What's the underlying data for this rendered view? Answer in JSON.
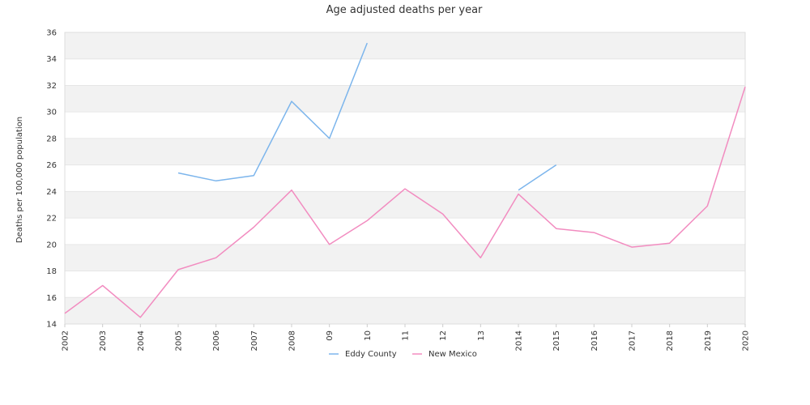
{
  "chart_data": {
    "type": "line",
    "title": "Age adjusted deaths per year",
    "xlabel": "",
    "ylabel": "Deaths per 100,000 population",
    "ylim": [
      14,
      36
    ],
    "yticks": [
      14,
      16,
      18,
      20,
      22,
      24,
      26,
      28,
      30,
      32,
      34,
      36
    ],
    "categories": [
      "2002",
      "2003",
      "2004",
      "2005",
      "2006",
      "2007",
      "2008",
      "09",
      "10",
      "11",
      "12",
      "13",
      "2014",
      "2015",
      "2016",
      "2017",
      "2018",
      "2019",
      "2020"
    ],
    "grid": "alternating horizontal bands",
    "legend_position": "bottom",
    "series": [
      {
        "name": "Eddy County",
        "color": "#7cb5ec",
        "values": [
          null,
          null,
          null,
          25.4,
          24.8,
          25.2,
          30.8,
          28.0,
          35.2,
          null,
          null,
          null,
          24.1,
          26.0,
          null,
          null,
          null,
          null,
          null
        ]
      },
      {
        "name": "New Mexico",
        "color": "#f28cc0",
        "values": [
          14.8,
          16.9,
          14.5,
          18.1,
          19.0,
          21.3,
          24.1,
          20.0,
          21.8,
          24.2,
          22.3,
          19.0,
          23.8,
          21.2,
          20.9,
          19.8,
          20.1,
          22.9,
          31.9
        ]
      }
    ]
  }
}
